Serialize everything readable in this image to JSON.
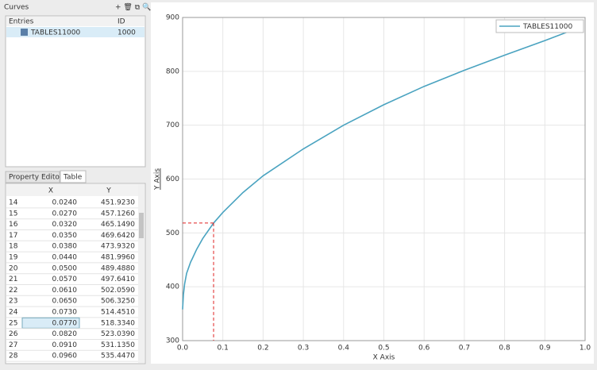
{
  "panel": {
    "title": "Curves",
    "columns": [
      "Entries",
      "ID"
    ],
    "entry": {
      "name": "TABLES11000",
      "id": "1000"
    },
    "tabs": [
      "Property Editor",
      "Table"
    ]
  },
  "table": {
    "columns": [
      "X",
      "Y"
    ],
    "rows": [
      [
        "14",
        "0.0240",
        "451.9230"
      ],
      [
        "15",
        "0.0270",
        "457.1260"
      ],
      [
        "16",
        "0.0320",
        "465.1490"
      ],
      [
        "17",
        "0.0350",
        "469.6420"
      ],
      [
        "18",
        "0.0380",
        "473.9320"
      ],
      [
        "19",
        "0.0440",
        "481.9960"
      ],
      [
        "20",
        "0.0500",
        "489.4880"
      ],
      [
        "21",
        "0.0570",
        "497.6410"
      ],
      [
        "22",
        "0.0610",
        "502.0590"
      ],
      [
        "23",
        "0.0650",
        "506.3250"
      ],
      [
        "24",
        "0.0730",
        "514.4510"
      ],
      [
        "25",
        "0.0770",
        "518.3340"
      ],
      [
        "26",
        "0.0820",
        "523.0390"
      ],
      [
        "27",
        "0.0910",
        "531.1350"
      ],
      [
        "28",
        "0.0960",
        "535.4470"
      ]
    ]
  },
  "chart_data": {
    "type": "line",
    "x_label": "X Axis",
    "y_label": "Y Axis",
    "x": [
      0,
      0.002,
      0.005,
      0.01,
      0.02,
      0.024,
      0.035,
      0.05,
      0.077,
      0.1,
      0.15,
      0.2,
      0.3,
      0.4,
      0.5,
      0.6,
      0.7,
      0.8,
      0.9,
      0.97
    ],
    "series": [
      {
        "name": "TABLES11000",
        "color": "#4aa3c0",
        "values": [
          358,
          385,
          405,
          425,
          446,
          452,
          469.6,
          489.5,
          518.3,
          538,
          575,
          606,
          656,
          700,
          738,
          772,
          802,
          830,
          857,
          877
        ]
      }
    ],
    "xlim": [
      0,
      1
    ],
    "ylim": [
      300,
      900
    ],
    "xticks": [
      {
        "value": 0,
        "label": "0.0"
      },
      0.1,
      0.2,
      0.3,
      0.4,
      0.5,
      0.6,
      0.7,
      0.8,
      0.9,
      {
        "value": 1,
        "label": "1.0"
      }
    ],
    "yticks": [
      300,
      400,
      500,
      600,
      700,
      800,
      900
    ],
    "grid": true,
    "crosshair": {
      "x": 0.077,
      "y": 518.334,
      "color": "#e02020"
    },
    "legend": "top-right"
  }
}
